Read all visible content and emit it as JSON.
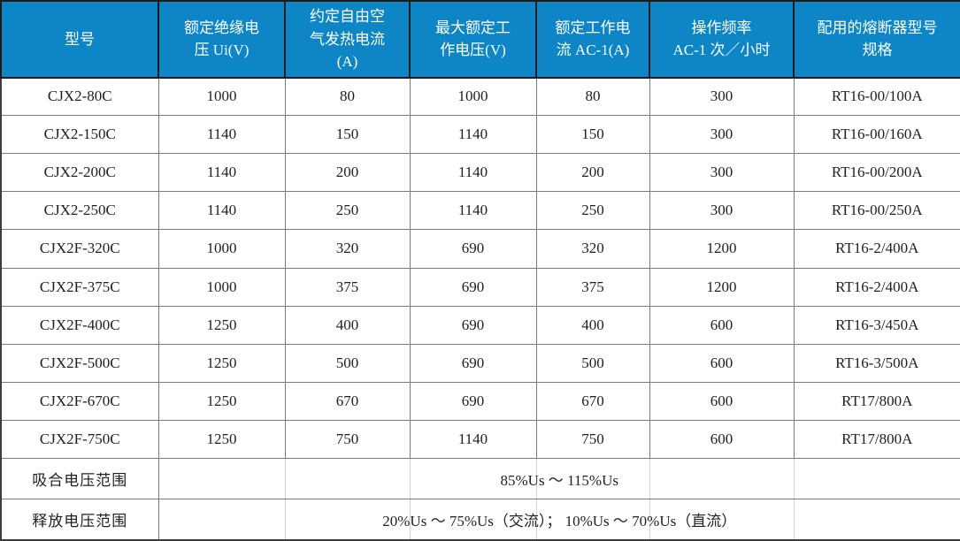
{
  "colors": {
    "header_bg": "#0E86C6",
    "header_text": "#FFFFFF",
    "body_text": "#212121",
    "grid_line": "#7A7A7A",
    "header_line": "#1B1B1B",
    "outer_border": "#3D3D3D",
    "faint_line": "#D2D2D2"
  },
  "table": {
    "columns": [
      "型号",
      "额定绝缘电\n压 Ui(V)",
      "约定自由空\n气发热电流\n(A)",
      "最大额定工\n作电压(V)",
      "额定工作电\n流 AC-1(A)",
      "操作频率\nAC-1 次／小时",
      "配用的熔断器型号\n规格"
    ],
    "rows": [
      [
        "CJX2-80C",
        "1000",
        "80",
        "1000",
        "80",
        "300",
        "RT16-00/100A"
      ],
      [
        "CJX2-150C",
        "1140",
        "150",
        "1140",
        "150",
        "300",
        "RT16-00/160A"
      ],
      [
        "CJX2-200C",
        "1140",
        "200",
        "1140",
        "200",
        "300",
        "RT16-00/200A"
      ],
      [
        "CJX2-250C",
        "1140",
        "250",
        "1140",
        "250",
        "300",
        "RT16-00/250A"
      ],
      [
        "CJX2F-320C",
        "1000",
        "320",
        "690",
        "320",
        "1200",
        "RT16-2/400A"
      ],
      [
        "CJX2F-375C",
        "1000",
        "375",
        "690",
        "375",
        "1200",
        "RT16-2/400A"
      ],
      [
        "CJX2F-400C",
        "1250",
        "400",
        "690",
        "400",
        "600",
        "RT16-3/450A"
      ],
      [
        "CJX2F-500C",
        "1250",
        "500",
        "690",
        "500",
        "600",
        "RT16-3/500A"
      ],
      [
        "CJX2F-670C",
        "1250",
        "670",
        "690",
        "670",
        "600",
        "RT17/800A"
      ],
      [
        "CJX2F-750C",
        "1250",
        "750",
        "1140",
        "750",
        "600",
        "RT17/800A"
      ]
    ],
    "footer_rows": [
      {
        "label": "吸合电压范围",
        "value": "85%Us ～ 115%Us"
      },
      {
        "label": "释放电压范围",
        "value": "20%Us ～ 75%Us（交流）； 10%Us ～ 70%Us（直流）"
      }
    ]
  }
}
